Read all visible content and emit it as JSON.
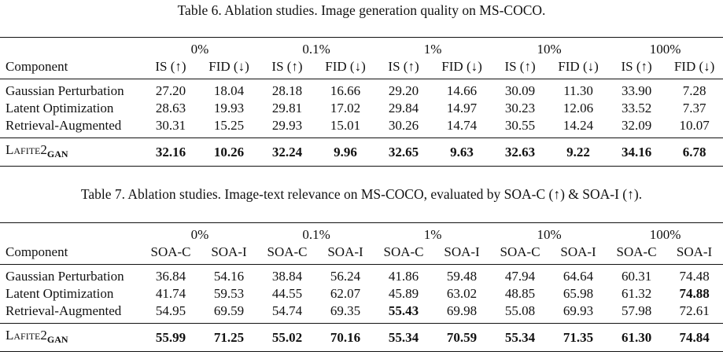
{
  "table6": {
    "caption": "Table 6. Ablation studies. Image generation quality on MS-COCO.",
    "component_header": "Component",
    "percent_headers": [
      "0%",
      "0.1%",
      "1%",
      "10%",
      "100%"
    ],
    "metric_headers": [
      "IS (↑)",
      "FID (↓)"
    ],
    "rows": [
      {
        "name": "Gaussian Perturbation",
        "values": [
          "27.20",
          "18.04",
          "28.18",
          "16.66",
          "29.20",
          "14.66",
          "30.09",
          "11.30",
          "33.90",
          "7.28"
        ]
      },
      {
        "name": "Latent Optimization",
        "values": [
          "28.63",
          "19.93",
          "29.81",
          "17.02",
          "29.84",
          "14.97",
          "30.23",
          "12.06",
          "33.52",
          "7.37"
        ]
      },
      {
        "name": "Retrieval-Augmented",
        "values": [
          "30.31",
          "15.25",
          "29.93",
          "15.01",
          "30.26",
          "14.74",
          "30.55",
          "14.24",
          "32.09",
          "10.07"
        ]
      }
    ],
    "final_row": {
      "name": "Lafite2",
      "name_sub": "GAN",
      "values": [
        "32.16",
        "10.26",
        "32.24",
        "9.96",
        "32.65",
        "9.63",
        "32.63",
        "9.22",
        "34.16",
        "6.78"
      ]
    }
  },
  "table7": {
    "caption": "Table 7. Ablation studies. Image-text relevance on MS-COCO, evaluated by SOA-C (↑) & SOA-I (↑).",
    "component_header": "Component",
    "percent_headers": [
      "0%",
      "0.1%",
      "1%",
      "10%",
      "100%"
    ],
    "metric_headers": [
      "SOA-C",
      "SOA-I"
    ],
    "rows": [
      {
        "name": "Gaussian Perturbation",
        "values": [
          "36.84",
          "54.16",
          "38.84",
          "56.24",
          "41.86",
          "59.48",
          "47.94",
          "64.64",
          "60.31",
          "74.48"
        ]
      },
      {
        "name": "Latent Optimization",
        "values": [
          "41.74",
          "59.53",
          "44.55",
          "62.07",
          "45.89",
          "63.02",
          "48.85",
          "65.98",
          "61.32",
          "74.88"
        ]
      },
      {
        "name": "Retrieval-Augmented",
        "values": [
          "54.95",
          "69.59",
          "54.74",
          "69.35",
          "55.43",
          "69.98",
          "55.08",
          "69.93",
          "57.98",
          "72.61"
        ]
      }
    ],
    "final_row": {
      "name": "Lafite2",
      "name_sub": "GAN",
      "values": [
        "55.99",
        "71.25",
        "55.02",
        "70.16",
        "55.34",
        "70.59",
        "55.34",
        "71.35",
        "61.30",
        "74.84"
      ]
    }
  }
}
